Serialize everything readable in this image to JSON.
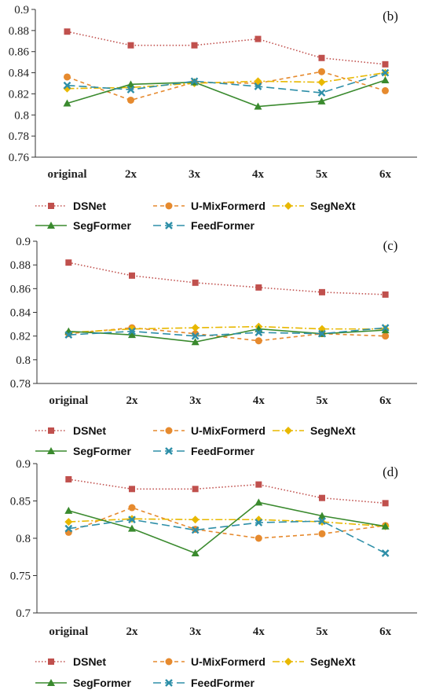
{
  "chart_data": [
    {
      "type": "line",
      "panel_label": "(b)",
      "categories": [
        "original",
        "2x",
        "3x",
        "4x",
        "5x",
        "6x"
      ],
      "yticks": [
        "0.76",
        "0.78",
        "0.8",
        "0.82",
        "0.84",
        "0.86",
        "0.88",
        "0.9"
      ],
      "ylim": [
        0.76,
        0.9
      ],
      "grid": false,
      "legend_position": "bottom",
      "series": [
        {
          "name": "DSNet",
          "values": [
            0.879,
            0.866,
            0.866,
            0.872,
            0.854,
            0.848
          ]
        },
        {
          "name": "U-MixFormerd",
          "values": [
            0.836,
            0.814,
            0.831,
            0.83,
            0.841,
            0.823
          ]
        },
        {
          "name": "SegNeXt",
          "values": [
            0.825,
            0.826,
            0.83,
            0.832,
            0.831,
            0.84
          ]
        },
        {
          "name": "SegFormer",
          "values": [
            0.811,
            0.829,
            0.831,
            0.808,
            0.813,
            0.833
          ]
        },
        {
          "name": "FeedFormer",
          "values": [
            0.828,
            0.824,
            0.832,
            0.827,
            0.821,
            0.84
          ]
        }
      ]
    },
    {
      "type": "line",
      "panel_label": "(c)",
      "categories": [
        "original",
        "2x",
        "3x",
        "4x",
        "5x",
        "6x"
      ],
      "yticks": [
        "0.78",
        "0.8",
        "0.82",
        "0.84",
        "0.86",
        "0.88",
        "0.9"
      ],
      "ylim": [
        0.78,
        0.9
      ],
      "grid": false,
      "legend_position": "bottom",
      "series": [
        {
          "name": "DSNet",
          "values": [
            0.882,
            0.871,
            0.865,
            0.861,
            0.857,
            0.855
          ]
        },
        {
          "name": "U-MixFormerd",
          "values": [
            0.822,
            0.827,
            0.822,
            0.816,
            0.822,
            0.82
          ]
        },
        {
          "name": "SegNeXt",
          "values": [
            0.823,
            0.826,
            0.827,
            0.828,
            0.826,
            0.826
          ]
        },
        {
          "name": "SegFormer",
          "values": [
            0.824,
            0.821,
            0.815,
            0.826,
            0.822,
            0.825
          ]
        },
        {
          "name": "FeedFormer",
          "values": [
            0.821,
            0.824,
            0.82,
            0.823,
            0.822,
            0.827
          ]
        }
      ]
    },
    {
      "type": "line",
      "panel_label": "(d)",
      "categories": [
        "original",
        "2x",
        "3x",
        "4x",
        "5x",
        "6x"
      ],
      "yticks": [
        "0.7",
        "0.75",
        "0.8",
        "0.85",
        "0.9"
      ],
      "ylim": [
        0.7,
        0.9
      ],
      "grid": false,
      "legend_position": "bottom",
      "series": [
        {
          "name": "DSNet",
          "values": [
            0.879,
            0.866,
            0.866,
            0.872,
            0.854,
            0.847
          ]
        },
        {
          "name": "U-MixFormerd",
          "values": [
            0.808,
            0.841,
            0.812,
            0.8,
            0.806,
            0.817
          ]
        },
        {
          "name": "SegNeXt",
          "values": [
            0.822,
            0.826,
            0.825,
            0.825,
            0.822,
            0.816
          ]
        },
        {
          "name": "SegFormer",
          "values": [
            0.837,
            0.813,
            0.78,
            0.848,
            0.83,
            0.816
          ]
        },
        {
          "name": "FeedFormer",
          "values": [
            0.813,
            0.825,
            0.811,
            0.821,
            0.823,
            0.78
          ]
        }
      ]
    }
  ],
  "series_styles": {
    "DSNet": {
      "color": "#c0504d",
      "marker": "square",
      "dash": "dotted"
    },
    "U-MixFormerd": {
      "color": "#e68a2e",
      "marker": "circle",
      "dash": "dashed"
    },
    "SegNeXt": {
      "color": "#e8b800",
      "marker": "diamond",
      "dash": "dashdot"
    },
    "SegFormer": {
      "color": "#3a8a2e",
      "marker": "triangle",
      "dash": "solid"
    },
    "FeedFormer": {
      "color": "#2e8fa8",
      "marker": "x",
      "dash": "longdash"
    }
  }
}
